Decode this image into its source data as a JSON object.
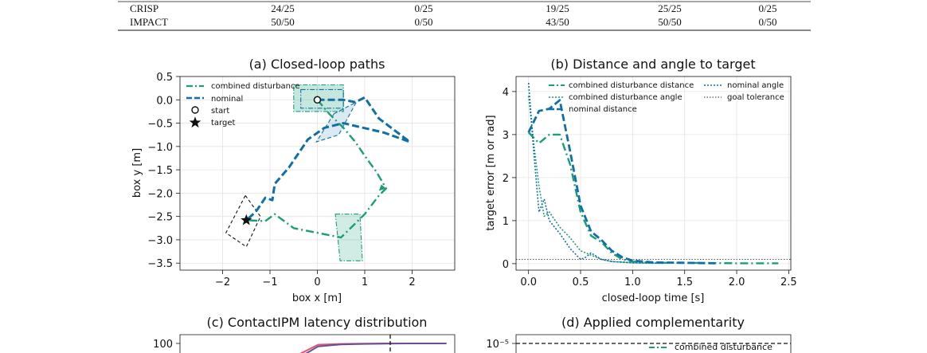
{
  "table": {
    "rows": [
      {
        "name": "CRISP",
        "cells": [
          "24/25",
          "0/25",
          "19/25",
          "25/25",
          "0/25"
        ]
      },
      {
        "name": "IMPACT",
        "cells": [
          "50/50",
          "0/50",
          "43/50",
          "50/50",
          "0/50"
        ]
      }
    ]
  },
  "colors": {
    "combined": "#1a9e77",
    "nominal": "#0f6fa8",
    "red_series": "#e0566e",
    "purple_series": "#6a4c9c"
  },
  "chart_data": [
    {
      "type": "line",
      "title": "(a) Closed-loop paths",
      "xlabel": "box x [m]",
      "ylabel": "box y [m]",
      "xlim": [
        -2.9,
        2.9
      ],
      "ylim": [
        -3.65,
        0.5
      ],
      "xticks": [
        -2,
        -1,
        0,
        1,
        2
      ],
      "yticks": [
        0.5,
        0.0,
        -0.5,
        -1.0,
        -1.5,
        -2.0,
        -2.5,
        -3.0,
        -3.5
      ],
      "grid": true,
      "legend": [
        "combined disturbance",
        "nominal",
        "start",
        "target"
      ],
      "series": [
        {
          "name": "combined disturbance",
          "x": [
            0.0,
            0.25,
            0.55,
            0.8,
            1.0,
            1.25,
            1.45,
            1.3,
            1.0,
            0.65,
            0.5,
            0.0,
            -0.5,
            -0.9,
            -1.1,
            -1.5
          ],
          "y": [
            0.0,
            -0.3,
            -0.6,
            -0.9,
            -1.2,
            -1.55,
            -1.9,
            -2.05,
            -2.45,
            -2.8,
            -2.95,
            -2.85,
            -2.75,
            -2.45,
            -2.6,
            -2.58
          ]
        },
        {
          "name": "nominal",
          "x": [
            0.0,
            0.55,
            0.8,
            1.0,
            1.3,
            1.95,
            1.4,
            0.55,
            0.15,
            -0.2,
            -0.6,
            -0.9,
            -0.95,
            -1.1,
            -1.3,
            -1.5
          ],
          "y": [
            0.0,
            0.0,
            -0.05,
            0.05,
            -0.4,
            -0.9,
            -0.7,
            -0.5,
            -0.6,
            -0.85,
            -1.45,
            -1.8,
            -2.15,
            -2.1,
            -2.4,
            -2.58
          ]
        }
      ],
      "markers": {
        "start": [
          0.0,
          0.0
        ],
        "target": [
          -1.5,
          -2.58
        ]
      }
    },
    {
      "type": "line",
      "title": "(b) Distance and angle to target",
      "xlabel": "closed-loop time [s]",
      "ylabel": "target error [m or rad]",
      "xlim": [
        -0.12,
        2.52
      ],
      "ylim": [
        -0.15,
        4.35
      ],
      "xticks": [
        0.0,
        0.5,
        1.0,
        1.5,
        2.0,
        2.5
      ],
      "yticks": [
        0,
        1,
        2,
        3,
        4
      ],
      "grid": true,
      "legend": [
        "combined disturbance distance",
        "combined disturbance angle",
        "nominal distance",
        "nominal angle",
        "goal tolerance"
      ],
      "series": [
        {
          "name": "combined disturbance distance",
          "x": [
            0.0,
            0.1,
            0.2,
            0.3,
            0.4,
            0.5,
            0.6,
            0.7,
            0.8,
            0.9,
            1.0,
            1.2,
            1.5,
            2.0,
            2.4
          ],
          "y": [
            3.05,
            2.8,
            3.0,
            3.0,
            2.3,
            1.2,
            0.65,
            0.5,
            0.25,
            0.1,
            0.05,
            0.02,
            0.02,
            0.01,
            0.01
          ]
        },
        {
          "name": "combined disturbance angle",
          "x": [
            0.0,
            0.05,
            0.1,
            0.15,
            0.2,
            0.3,
            0.4,
            0.5,
            0.6,
            0.7,
            0.8,
            1.0,
            1.3
          ],
          "y": [
            3.9,
            2.8,
            1.8,
            1.1,
            1.2,
            0.85,
            0.6,
            0.3,
            0.2,
            0.1,
            0.05,
            0.02,
            0.01
          ]
        },
        {
          "name": "nominal distance",
          "x": [
            0.0,
            0.1,
            0.2,
            0.3,
            0.4,
            0.5,
            0.6,
            0.7,
            0.8,
            0.9,
            1.0,
            1.2,
            1.5,
            1.8
          ],
          "y": [
            3.05,
            3.55,
            3.6,
            3.8,
            2.6,
            1.35,
            0.75,
            0.55,
            0.3,
            0.15,
            0.07,
            0.03,
            0.02,
            0.01
          ]
        },
        {
          "name": "nominal angle",
          "x": [
            0.0,
            0.05,
            0.1,
            0.15,
            0.2,
            0.3,
            0.4,
            0.5,
            0.55,
            0.6,
            0.7,
            0.8,
            1.0,
            1.3
          ],
          "y": [
            4.2,
            2.6,
            1.2,
            1.5,
            1.0,
            0.7,
            0.35,
            0.1,
            0.15,
            0.25,
            0.1,
            0.05,
            0.02,
            0.01
          ]
        },
        {
          "name": "goal tolerance",
          "x": [
            -0.12,
            2.52
          ],
          "y": [
            0.1,
            0.1
          ]
        }
      ]
    },
    {
      "type": "line",
      "title": "(c) ContactIPM latency distribution",
      "yticks": [
        100
      ],
      "series": [
        {
          "x": [
            0.0,
            0.15,
            0.3,
            0.45,
            0.6,
            0.75,
            0.9,
            1.0
          ],
          "y": [
            95,
            99.5,
            99.8,
            99.9,
            100,
            100,
            100,
            100
          ]
        },
        {
          "x": [
            0.04,
            0.15,
            0.3,
            0.45,
            0.6,
            0.75,
            0.9,
            1.0
          ],
          "y": [
            95,
            98.8,
            99.6,
            99.8,
            99.9,
            100,
            100,
            100
          ]
        }
      ]
    },
    {
      "type": "line",
      "title": "(d) Applied complementarity",
      "yticks": [
        "10⁻⁵"
      ],
      "legend": [
        "combined disturbance"
      ]
    }
  ]
}
